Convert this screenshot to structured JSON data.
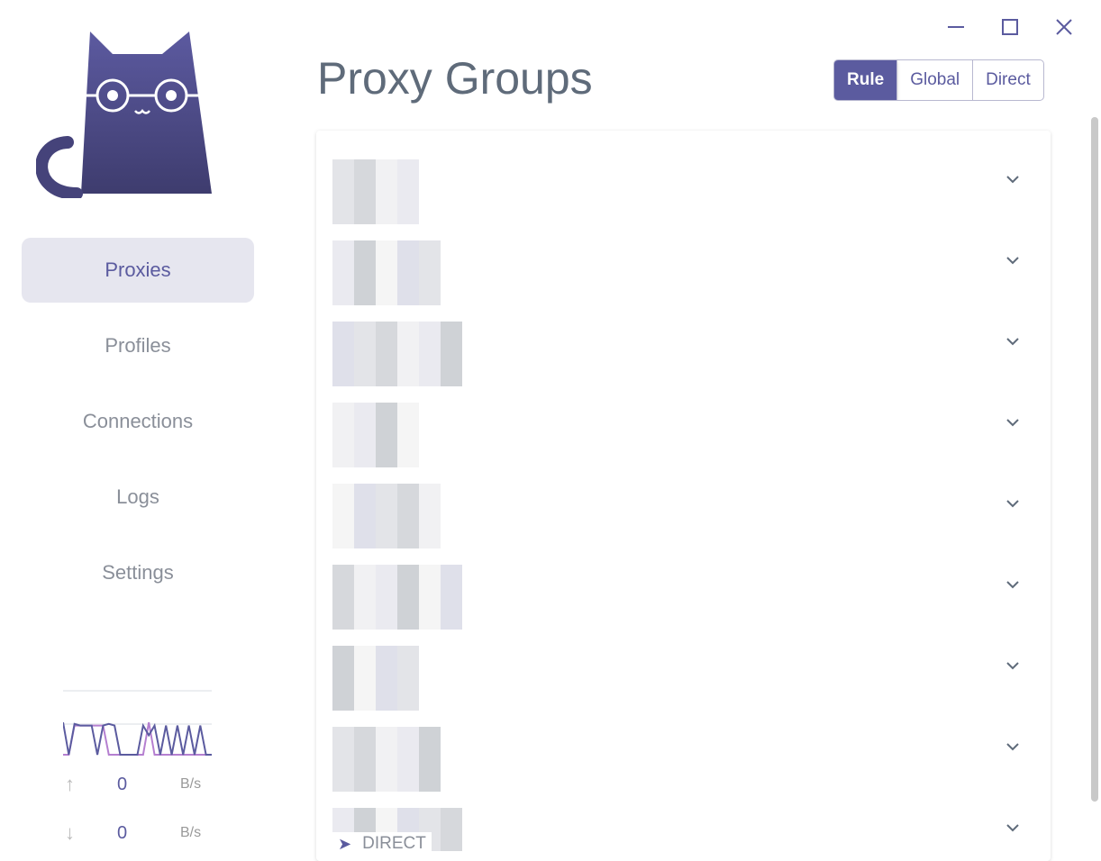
{
  "window": {
    "controls": [
      "minimize",
      "maximize",
      "close"
    ]
  },
  "sidebar": {
    "items": [
      {
        "label": "Proxies",
        "active": true
      },
      {
        "label": "Profiles"
      },
      {
        "label": "Connections"
      },
      {
        "label": "Logs"
      },
      {
        "label": "Settings"
      }
    ]
  },
  "traffic": {
    "upload": {
      "value": "0",
      "unit": "B/s"
    },
    "download": {
      "value": "0",
      "unit": "B/s"
    },
    "upload_series": [
      0,
      0,
      0.9,
      0.9,
      0.9,
      0.9,
      0.9,
      0.9,
      0,
      0,
      0,
      0,
      0,
      0,
      0,
      1,
      0,
      0,
      0,
      0,
      0,
      0,
      0,
      0,
      0,
      0,
      0
    ],
    "download_series": [
      1,
      0,
      0.95,
      0.9,
      0.9,
      0.9,
      0,
      0.9,
      0.95,
      0.9,
      0,
      0,
      0,
      0,
      0.9,
      0.6,
      0.9,
      0,
      0.9,
      0,
      0.9,
      0,
      0.9,
      0,
      0.9,
      0,
      0
    ]
  },
  "header": {
    "title": "Proxy Groups",
    "modes": [
      {
        "label": "Rule",
        "active": true
      },
      {
        "label": "Global"
      },
      {
        "label": "Direct"
      }
    ]
  },
  "groups_count": 9,
  "last_group": {
    "selected": "DIRECT"
  },
  "colors": {
    "accent": "#5b5b9f",
    "text_muted": "#8a8f99"
  }
}
